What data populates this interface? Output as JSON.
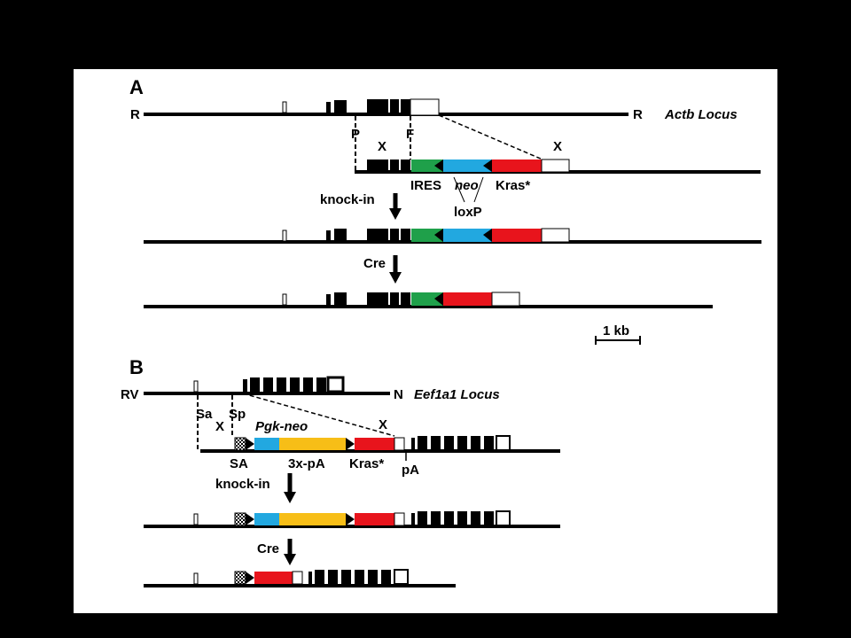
{
  "colors": {
    "ires": "#1fa04a",
    "neo": "#22a8e0",
    "kras": "#e8141c",
    "pA": "#f7be17",
    "line": "#000000",
    "background": "#000000",
    "panel": "#ffffff"
  },
  "panel_a": {
    "letter": "A",
    "locus_label": "Actb Locus",
    "site_R_left": "R",
    "site_R_right": "R",
    "site_P": "P",
    "site_F": "F",
    "site_X1": "X",
    "site_X2": "X",
    "label_ires": "IRES",
    "label_neo": "neo",
    "label_kras": "Kras*",
    "label_loxp": "loxP",
    "step1": "knock-in",
    "step2": "Cre"
  },
  "scale_bar": {
    "label": "1 kb"
  },
  "panel_b": {
    "letter": "B",
    "locus_label": "Eef1a1 Locus",
    "site_RV": "RV",
    "site_N": "N",
    "site_Sa": "Sa",
    "site_Sp": "Sp",
    "site_X1": "X",
    "site_X2": "X",
    "label_pgkneo": "Pgk-neo",
    "label_sa": "SA",
    "label_3xpa": "3x-pA",
    "label_kras": "Kras*",
    "label_pa": "pA",
    "step1": "knock-in",
    "step2": "Cre"
  }
}
